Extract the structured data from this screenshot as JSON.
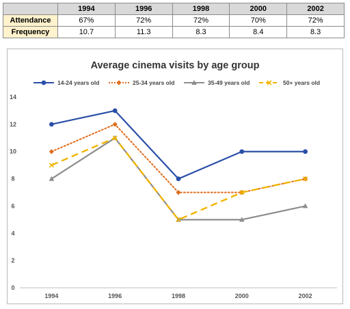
{
  "table": {
    "headers": [
      "",
      "1994",
      "1996",
      "1998",
      "2000",
      "2002"
    ],
    "rows": [
      {
        "label": "Attendance",
        "values": [
          "67%",
          "72%",
          "72%",
          "70%",
          "72%"
        ]
      },
      {
        "label": "Frequency",
        "values": [
          "10.7",
          "11.3",
          "8.3",
          "8.4",
          "8.3"
        ]
      }
    ]
  },
  "chart_data": {
    "type": "line",
    "title": "Average cinema visits by age group",
    "xlabel": "",
    "ylabel": "",
    "categories": [
      "1994",
      "1996",
      "1998",
      "2000",
      "2002"
    ],
    "ylim": [
      0,
      14
    ],
    "yticks": [
      0,
      2,
      4,
      6,
      8,
      10,
      12,
      14
    ],
    "grid": false,
    "legend_position": "top",
    "series": [
      {
        "name": "14-24 years old",
        "values": [
          12,
          13,
          8,
          10,
          10
        ],
        "color": "#2a4fa8",
        "style": "solid",
        "marker": "circle"
      },
      {
        "name": "25-34 years old",
        "values": [
          10,
          12,
          7,
          7,
          8
        ],
        "color": "#e06c1c",
        "style": "dotted",
        "marker": "diamond"
      },
      {
        "name": "35-49 years old",
        "values": [
          8,
          11,
          5,
          5,
          6
        ],
        "color": "#8c8c8c",
        "style": "solid",
        "marker": "triangle"
      },
      {
        "name": "50+ years old",
        "values": [
          9,
          11,
          5,
          7,
          8
        ],
        "color": "#f0b400",
        "style": "dashed",
        "marker": "x"
      }
    ]
  }
}
